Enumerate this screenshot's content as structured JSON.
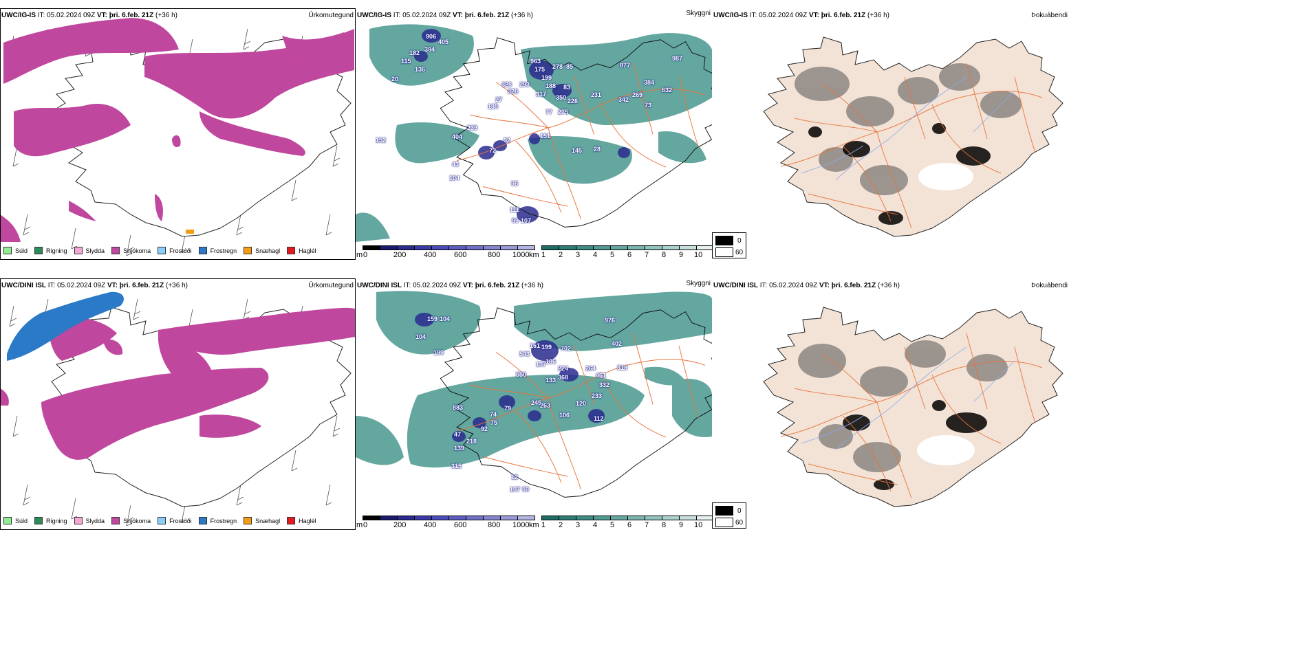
{
  "rows": [
    {
      "model": "UWC/IG-IS",
      "it_label": "IT:",
      "it_value": "05.02.2024 09Z",
      "vt_label": "VT:",
      "vt_value": "þri. 6.feb. 21Z",
      "lead": "(+36 h)",
      "numbers": [
        "906",
        "405",
        "182",
        "394",
        "115",
        "136",
        "20",
        "328",
        "293",
        "328",
        "27",
        "185",
        "963",
        "175",
        "278",
        "85",
        "199",
        "188",
        "83",
        "317",
        "350",
        "77",
        "275",
        "226",
        "877",
        "987",
        "231",
        "269",
        "384",
        "632",
        "342",
        "73",
        "239",
        "152",
        "404",
        "92",
        "151",
        "72",
        "145",
        "28",
        "43",
        "104",
        "98",
        "111",
        "99",
        "107"
      ]
    },
    {
      "model": "UWC/DINI ISL",
      "it_label": "IT:",
      "it_value": "05.02.2024 09Z",
      "vt_label": "VT:",
      "vt_value": "þri. 6.feb. 21Z",
      "lead": "(+36 h)",
      "numbers": [
        "159",
        "104",
        "104",
        "199",
        "976",
        "402",
        "161",
        "199",
        "702",
        "543",
        "137",
        "186",
        "550",
        "224",
        "264",
        "318",
        "133",
        "368",
        "461",
        "332",
        "233",
        "883",
        "79",
        "245",
        "263",
        "120",
        "74",
        "106",
        "112",
        "75",
        "47",
        "92",
        "218",
        "139",
        "315",
        "12",
        "107",
        "59"
      ]
    }
  ],
  "panel_titles": {
    "precip": "Úrkomutegund",
    "vis": "Skyggni",
    "fog": "Þokuábendi"
  },
  "precip_legend": [
    {
      "label": "Súld",
      "color": "#90ee90"
    },
    {
      "label": "Rigning",
      "color": "#2e8b57"
    },
    {
      "label": "Slydda",
      "color": "#f4a6d4"
    },
    {
      "label": "Snjókoma",
      "color": "#c0479e"
    },
    {
      "label": "Frostúði",
      "color": "#87cefa"
    },
    {
      "label": "Frostregn",
      "color": "#2a7ac8"
    },
    {
      "label": "Snæhagl",
      "color": "#f39c12"
    },
    {
      "label": "Haglél",
      "color": "#e41a1c"
    }
  ],
  "colorbar_m": {
    "unit": "m",
    "ticks": [
      "0",
      "200",
      "400",
      "600",
      "800",
      "1000"
    ],
    "colors": [
      "#000000",
      "#1a1a6e",
      "#2b2b8e",
      "#3b3ba8",
      "#4b4bb8",
      "#5d5dc0",
      "#7070c8",
      "#8585d0",
      "#9a9ad8",
      "#b5b5e2"
    ]
  },
  "colorbar_km": {
    "unit": "km",
    "ticks": [
      "1",
      "2",
      "3",
      "4",
      "5",
      "6",
      "7",
      "8",
      "9",
      "10"
    ],
    "colors": [
      "#1f6e66",
      "#2d7d75",
      "#3e8c84",
      "#519a93",
      "#65a8a1",
      "#7ab5af",
      "#92c3be",
      "#abd1cd",
      "#c7e0dd",
      "#e6f0ef"
    ]
  },
  "fog_legend": [
    {
      "label": "0",
      "color": "#000000"
    },
    {
      "label": "60",
      "color": "#ffffff"
    }
  ],
  "colors": {
    "snow": "#c0479e",
    "freezing_rain": "#2a7ac8",
    "vis_green": "#2f8a80",
    "vis_blue": "#2b2b8e",
    "land": "#f3e3d6",
    "roads": "#e8733a",
    "rivers": "#8aa8ee"
  }
}
